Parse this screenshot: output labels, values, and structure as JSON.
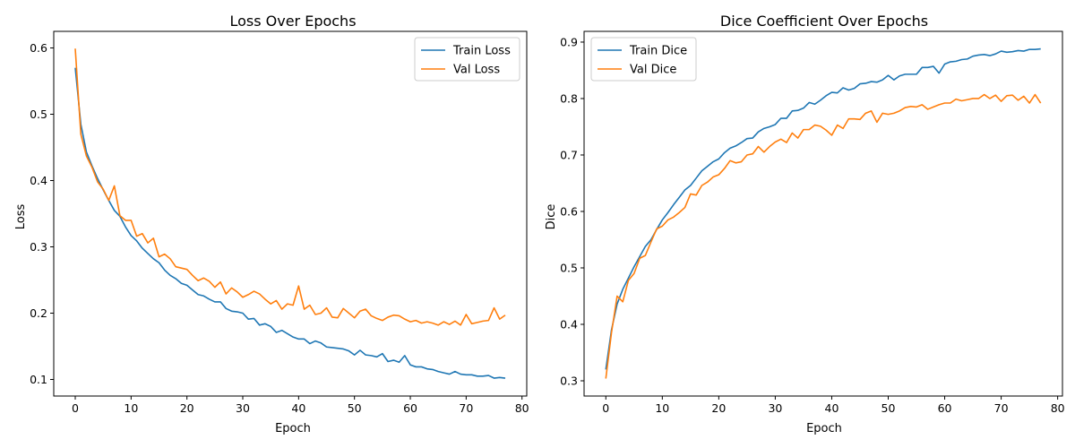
{
  "chart_data": [
    {
      "type": "line",
      "title": "Loss Over Epochs",
      "xlabel": "Epoch",
      "ylabel": "Loss",
      "xlim": [
        -3.85,
        80.85
      ],
      "ylim": [
        0.075,
        0.625
      ],
      "xticks": [
        0,
        10,
        20,
        30,
        40,
        50,
        60,
        70,
        80
      ],
      "yticks": [
        0.1,
        0.2,
        0.3,
        0.4,
        0.5,
        0.6
      ],
      "ytick_decimals": 1,
      "legend_position": "top-right",
      "grid": false,
      "series": [
        {
          "name": "Train Loss",
          "color": "#1f77b4",
          "x": [
            0,
            1,
            2,
            3,
            4,
            5,
            6,
            7,
            8,
            9,
            10,
            11,
            12,
            13,
            14,
            15,
            16,
            17,
            18,
            19,
            20,
            21,
            22,
            23,
            24,
            25,
            26,
            27,
            28,
            29,
            30,
            31,
            32,
            33,
            34,
            35,
            36,
            37,
            38,
            39,
            40,
            41,
            42,
            43,
            44,
            45,
            46,
            47,
            48,
            49,
            50,
            51,
            52,
            53,
            54,
            55,
            56,
            57,
            58,
            59,
            60,
            61,
            62,
            63,
            64,
            65,
            66,
            67,
            68,
            69,
            70,
            71,
            72,
            73,
            74,
            75,
            76,
            77
          ],
          "values": [
            0.57,
            0.485,
            0.443,
            0.422,
            0.403,
            0.386,
            0.37,
            0.355,
            0.346,
            0.33,
            0.317,
            0.309,
            0.298,
            0.29,
            0.282,
            0.276,
            0.265,
            0.257,
            0.252,
            0.245,
            0.242,
            0.235,
            0.228,
            0.226,
            0.221,
            0.217,
            0.217,
            0.207,
            0.203,
            0.202,
            0.2,
            0.191,
            0.192,
            0.182,
            0.184,
            0.18,
            0.171,
            0.174,
            0.169,
            0.164,
            0.161,
            0.161,
            0.154,
            0.158,
            0.155,
            0.149,
            0.148,
            0.147,
            0.146,
            0.143,
            0.137,
            0.144,
            0.137,
            0.136,
            0.134,
            0.139,
            0.127,
            0.129,
            0.126,
            0.136,
            0.122,
            0.119,
            0.119,
            0.116,
            0.115,
            0.112,
            0.11,
            0.108,
            0.112,
            0.108,
            0.107,
            0.107,
            0.105,
            0.105,
            0.106,
            0.102,
            0.103,
            0.102
          ]
        },
        {
          "name": "Val Loss",
          "color": "#ff7f0e",
          "x": [
            0,
            1,
            2,
            3,
            4,
            5,
            6,
            7,
            8,
            9,
            10,
            11,
            12,
            13,
            14,
            15,
            16,
            17,
            18,
            19,
            20,
            21,
            22,
            23,
            24,
            25,
            26,
            27,
            28,
            29,
            30,
            31,
            32,
            33,
            34,
            35,
            36,
            37,
            38,
            39,
            40,
            41,
            42,
            43,
            44,
            45,
            46,
            47,
            48,
            49,
            50,
            51,
            52,
            53,
            54,
            55,
            56,
            57,
            58,
            59,
            60,
            61,
            62,
            63,
            64,
            65,
            66,
            67,
            68,
            69,
            70,
            71,
            72,
            73,
            74,
            75,
            76,
            77
          ],
          "values": [
            0.599,
            0.47,
            0.437,
            0.42,
            0.398,
            0.387,
            0.37,
            0.392,
            0.347,
            0.34,
            0.34,
            0.316,
            0.32,
            0.306,
            0.313,
            0.285,
            0.289,
            0.282,
            0.27,
            0.268,
            0.266,
            0.257,
            0.249,
            0.253,
            0.248,
            0.239,
            0.247,
            0.229,
            0.238,
            0.232,
            0.224,
            0.228,
            0.233,
            0.229,
            0.221,
            0.214,
            0.219,
            0.206,
            0.214,
            0.212,
            0.241,
            0.206,
            0.212,
            0.198,
            0.2,
            0.208,
            0.194,
            0.193,
            0.207,
            0.2,
            0.193,
            0.203,
            0.206,
            0.196,
            0.192,
            0.189,
            0.194,
            0.197,
            0.196,
            0.191,
            0.187,
            0.189,
            0.185,
            0.187,
            0.185,
            0.182,
            0.187,
            0.183,
            0.188,
            0.182,
            0.198,
            0.184,
            0.186,
            0.188,
            0.189,
            0.208,
            0.191,
            0.197
          ]
        }
      ]
    },
    {
      "type": "line",
      "title": "Dice Coefficient Over Epochs",
      "xlabel": "Epoch",
      "ylabel": "Dice",
      "xlim": [
        -3.85,
        80.85
      ],
      "ylim": [
        0.273,
        0.919
      ],
      "xticks": [
        0,
        10,
        20,
        30,
        40,
        50,
        60,
        70,
        80
      ],
      "yticks": [
        0.3,
        0.4,
        0.5,
        0.6,
        0.7,
        0.8,
        0.9
      ],
      "ytick_decimals": 1,
      "legend_position": "top-left",
      "grid": false,
      "series": [
        {
          "name": "Train Dice",
          "color": "#1f77b4",
          "x": [
            0,
            1,
            2,
            3,
            4,
            5,
            6,
            7,
            8,
            9,
            10,
            11,
            12,
            13,
            14,
            15,
            16,
            17,
            18,
            19,
            20,
            21,
            22,
            23,
            24,
            25,
            26,
            27,
            28,
            29,
            30,
            31,
            32,
            33,
            34,
            35,
            36,
            37,
            38,
            39,
            40,
            41,
            42,
            43,
            44,
            45,
            46,
            47,
            48,
            49,
            50,
            51,
            52,
            53,
            54,
            55,
            56,
            57,
            58,
            59,
            60,
            61,
            62,
            63,
            64,
            65,
            66,
            67,
            68,
            69,
            70,
            71,
            72,
            73,
            74,
            75,
            76,
            77
          ],
          "values": [
            0.32,
            0.39,
            0.436,
            0.462,
            0.482,
            0.502,
            0.52,
            0.538,
            0.55,
            0.568,
            0.585,
            0.598,
            0.612,
            0.625,
            0.638,
            0.646,
            0.659,
            0.672,
            0.68,
            0.688,
            0.693,
            0.704,
            0.712,
            0.716,
            0.722,
            0.729,
            0.73,
            0.741,
            0.747,
            0.75,
            0.754,
            0.765,
            0.765,
            0.778,
            0.779,
            0.783,
            0.793,
            0.79,
            0.797,
            0.805,
            0.811,
            0.81,
            0.819,
            0.815,
            0.818,
            0.826,
            0.827,
            0.83,
            0.829,
            0.833,
            0.841,
            0.833,
            0.84,
            0.843,
            0.843,
            0.843,
            0.855,
            0.855,
            0.857,
            0.845,
            0.861,
            0.865,
            0.866,
            0.869,
            0.87,
            0.875,
            0.877,
            0.878,
            0.876,
            0.879,
            0.884,
            0.882,
            0.883,
            0.885,
            0.884,
            0.887,
            0.887,
            0.888
          ]
        },
        {
          "name": "Val Dice",
          "color": "#ff7f0e",
          "x": [
            0,
            1,
            2,
            3,
            4,
            5,
            6,
            7,
            8,
            9,
            10,
            11,
            12,
            13,
            14,
            15,
            16,
            17,
            18,
            19,
            20,
            21,
            22,
            23,
            24,
            25,
            26,
            27,
            28,
            29,
            30,
            31,
            32,
            33,
            34,
            35,
            36,
            37,
            38,
            39,
            40,
            41,
            42,
            43,
            44,
            45,
            46,
            47,
            48,
            49,
            50,
            51,
            52,
            53,
            54,
            55,
            56,
            57,
            58,
            59,
            60,
            61,
            62,
            63,
            64,
            65,
            66,
            67,
            68,
            69,
            70,
            71,
            72,
            73,
            74,
            75,
            76,
            77
          ],
          "values": [
            0.304,
            0.385,
            0.45,
            0.44,
            0.478,
            0.49,
            0.517,
            0.522,
            0.546,
            0.569,
            0.574,
            0.585,
            0.59,
            0.598,
            0.607,
            0.631,
            0.629,
            0.646,
            0.652,
            0.661,
            0.665,
            0.676,
            0.69,
            0.686,
            0.688,
            0.7,
            0.702,
            0.715,
            0.705,
            0.715,
            0.723,
            0.728,
            0.722,
            0.739,
            0.73,
            0.745,
            0.745,
            0.753,
            0.751,
            0.744,
            0.735,
            0.753,
            0.747,
            0.764,
            0.764,
            0.763,
            0.774,
            0.778,
            0.758,
            0.774,
            0.772,
            0.774,
            0.778,
            0.784,
            0.786,
            0.785,
            0.789,
            0.781,
            0.785,
            0.789,
            0.792,
            0.792,
            0.799,
            0.796,
            0.798,
            0.8,
            0.8,
            0.807,
            0.8,
            0.806,
            0.795,
            0.805,
            0.806,
            0.797,
            0.804,
            0.792,
            0.807,
            0.792
          ]
        }
      ]
    }
  ]
}
